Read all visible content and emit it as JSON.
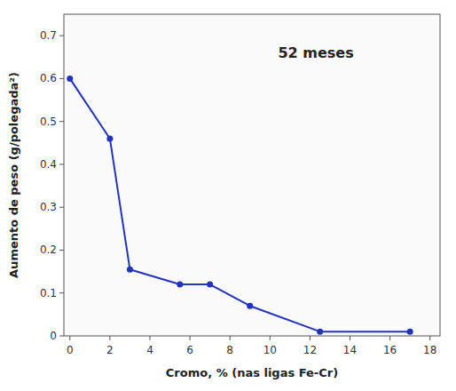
{
  "chart_data": {
    "type": "line",
    "title": "52 meses",
    "xlabel": "Cromo, % (nas ligas Fe-Cr)",
    "ylabel": "Aumento de peso (g/polegada²)",
    "x": [
      0,
      2,
      3,
      5.5,
      7,
      9,
      12.5,
      17
    ],
    "values": [
      0.6,
      0.46,
      0.155,
      0.12,
      0.12,
      0.07,
      0.01,
      0.01
    ],
    "color": "#2233bb",
    "marker": "circle",
    "xlim": [
      -0.3,
      18.5
    ],
    "ylim": [
      0,
      0.75
    ],
    "xticks": [
      0,
      2,
      4,
      6,
      8,
      10,
      12,
      14,
      16,
      18
    ],
    "yticks": [
      0,
      0.1,
      0.2,
      0.3,
      0.4,
      0.5,
      0.6,
      0.7
    ]
  }
}
